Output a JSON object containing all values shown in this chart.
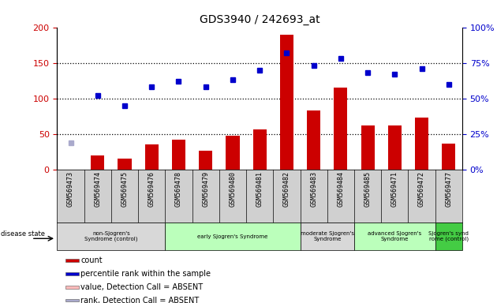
{
  "title": "GDS3940 / 242693_at",
  "samples": [
    "GSM569473",
    "GSM569474",
    "GSM569475",
    "GSM569476",
    "GSM569478",
    "GSM569479",
    "GSM569480",
    "GSM569481",
    "GSM569482",
    "GSM569483",
    "GSM569484",
    "GSM569485",
    "GSM569471",
    "GSM569472",
    "GSM569477"
  ],
  "counts": [
    0,
    20,
    16,
    35,
    42,
    27,
    48,
    57,
    190,
    83,
    115,
    62,
    62,
    73,
    37
  ],
  "ranks_pct": [
    19,
    52,
    45,
    58,
    62,
    58,
    63,
    70,
    82,
    73,
    78,
    68,
    67,
    71,
    60
  ],
  "absent_mask": [
    true,
    false,
    false,
    false,
    false,
    false,
    false,
    false,
    false,
    false,
    false,
    false,
    false,
    false,
    false
  ],
  "bar_color_present": "#cc0000",
  "bar_color_absent": "#ffaaaa",
  "dot_color_present": "#0000cc",
  "dot_color_absent": "#aaaacc",
  "ylim_left": [
    0,
    200
  ],
  "ylim_right": [
    0,
    100
  ],
  "yticks_left": [
    0,
    50,
    100,
    150,
    200
  ],
  "yticks_right": [
    0,
    25,
    50,
    75,
    100
  ],
  "yticklabels_right": [
    "0%",
    "25%",
    "50%",
    "75%",
    "100%"
  ],
  "hlines": [
    50,
    100,
    150
  ],
  "groups": [
    {
      "label": "non-Sjogren's\nSyndrome (control)",
      "start": 0,
      "end": 3,
      "color": "#d8d8d8"
    },
    {
      "label": "early Sjogren's Syndrome",
      "start": 4,
      "end": 8,
      "color": "#bbffbb"
    },
    {
      "label": "moderate Sjogren's\nSyndrome",
      "start": 9,
      "end": 10,
      "color": "#d8d8d8"
    },
    {
      "label": "advanced Sjogren's\nSyndrome",
      "start": 11,
      "end": 13,
      "color": "#bbffbb"
    },
    {
      "label": "Sjogren's synd\nrome (control)",
      "start": 14,
      "end": 14,
      "color": "#44cc44"
    }
  ],
  "legend_items": [
    {
      "label": "count",
      "color": "#cc0000"
    },
    {
      "label": "percentile rank within the sample",
      "color": "#0000cc"
    },
    {
      "label": "value, Detection Call = ABSENT",
      "color": "#ffbbbb"
    },
    {
      "label": "rank, Detection Call = ABSENT",
      "color": "#aaaacc"
    }
  ],
  "xlabel_color": "#cc0000",
  "ylabel_right_color": "#0000cc",
  "background_color": "#ffffff",
  "xlabels_bg": "#d0d0d0",
  "bar_width": 0.5
}
